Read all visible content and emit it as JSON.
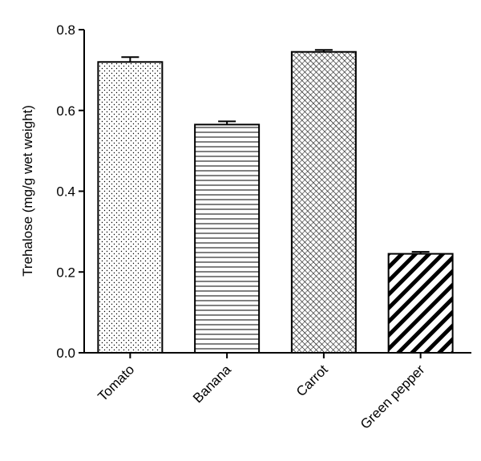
{
  "chart_data": {
    "type": "bar",
    "title": "",
    "xlabel": "",
    "ylabel": "Trehalose (mg/g wet weight)",
    "categories": [
      "Tomato",
      "Banana",
      "Carrot",
      "Green pepper"
    ],
    "values": [
      0.72,
      0.565,
      0.745,
      0.245
    ],
    "errors": [
      0.012,
      0.008,
      0.005,
      0.005
    ],
    "patterns": [
      "dots",
      "horizontal-lines",
      "fine-diagonal-hatch",
      "bold-diagonal-stripes"
    ],
    "ylim": [
      0,
      0.8
    ],
    "yticks": [
      0.0,
      0.2,
      0.4,
      0.6,
      0.8
    ],
    "ytick_labels": [
      "0.0",
      "0.2",
      "0.4",
      "0.6",
      "0.8"
    ],
    "grid": false,
    "legend": "none",
    "colors": {
      "bar_stroke": "#000000",
      "bar_fill": "#ffffff"
    }
  }
}
